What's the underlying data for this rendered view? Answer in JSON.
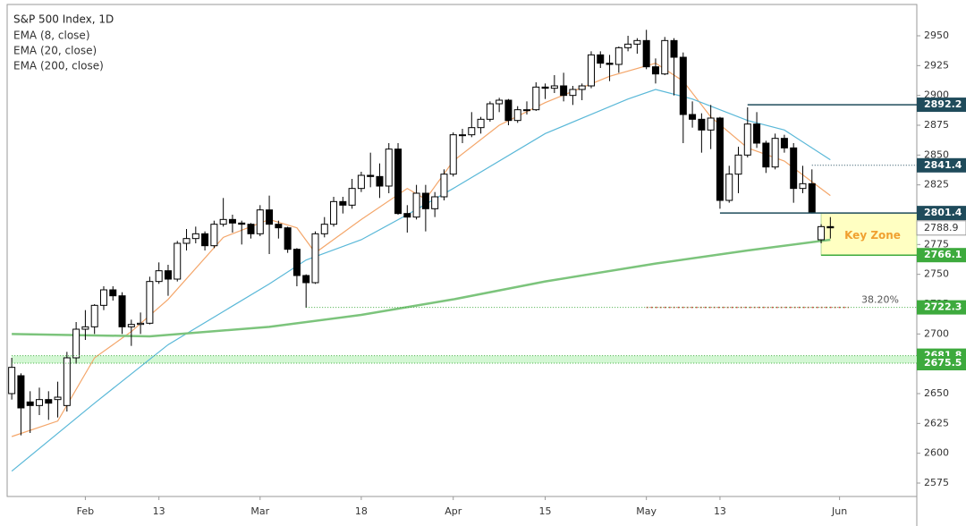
{
  "chart_data": {
    "type": "candlestick",
    "title": "S&P 500 Index, 1D",
    "x": [
      0,
      1,
      2,
      3,
      4,
      5,
      6,
      7,
      8,
      9,
      10,
      11,
      12,
      13,
      14,
      15,
      16,
      17,
      18,
      19,
      20,
      21,
      22,
      23,
      24,
      25,
      26,
      27,
      28,
      29,
      30,
      31,
      32,
      33,
      34,
      35,
      36,
      37,
      38,
      39,
      40,
      41,
      42,
      43,
      44,
      45,
      46,
      47,
      48,
      49,
      50,
      51,
      52,
      53,
      54,
      55,
      56,
      57,
      58,
      59,
      60,
      61,
      62,
      63,
      64,
      65,
      66,
      67,
      68,
      69,
      70,
      71,
      72,
      73,
      74,
      75,
      76,
      77,
      78,
      79,
      80,
      81,
      82,
      83,
      84,
      85,
      86,
      87,
      88,
      89
    ],
    "open": [
      2650,
      2665,
      2643,
      2640,
      2645,
      2645,
      2640,
      2680,
      2704,
      2706,
      2724,
      2737,
      2732,
      2706,
      2708,
      2709,
      2744,
      2753,
      2746,
      2776,
      2780,
      2784,
      2774,
      2792,
      2796,
      2793,
      2792,
      2784,
      2804,
      2792,
      2789,
      2771,
      2749,
      2743,
      2784,
      2792,
      2811,
      2808,
      2822,
      2833,
      2832,
      2824,
      2855,
      2801,
      2798,
      2818,
      2805,
      2815,
      2834,
      2867,
      2867,
      2873,
      2880,
      2893,
      2896,
      2879,
      2888,
      2888,
      2907,
      2906,
      2908,
      2900,
      2905,
      2908,
      2934,
      2927,
      2926,
      2940,
      2943,
      2946,
      2924,
      2918,
      2946,
      2932,
      2884,
      2880,
      2871,
      2881,
      2812,
      2834,
      2850,
      2876,
      2860,
      2840,
      2864,
      2856,
      2822,
      2826,
      2779,
      2790
    ],
    "high": [
      2680,
      2667,
      2652,
      2655,
      2652,
      2660,
      2685,
      2710,
      2720,
      2725,
      2740,
      2740,
      2735,
      2712,
      2718,
      2748,
      2760,
      2758,
      2778,
      2788,
      2790,
      2786,
      2795,
      2814,
      2800,
      2795,
      2793,
      2808,
      2816,
      2795,
      2790,
      2772,
      2750,
      2786,
      2798,
      2815,
      2815,
      2830,
      2836,
      2852,
      2843,
      2860,
      2860,
      2808,
      2825,
      2825,
      2819,
      2838,
      2869,
      2872,
      2886,
      2882,
      2895,
      2898,
      2897,
      2891,
      2895,
      2911,
      2910,
      2917,
      2919,
      2908,
      2910,
      2937,
      2937,
      2934,
      2941,
      2950,
      2948,
      2955,
      2931,
      2949,
      2948,
      2936,
      2895,
      2885,
      2892,
      2882,
      2841,
      2857,
      2890,
      2886,
      2862,
      2868,
      2867,
      2860,
      2841,
      2838,
      2792,
      2798
    ],
    "low": [
      2645,
      2615,
      2617,
      2632,
      2628,
      2630,
      2635,
      2675,
      2695,
      2700,
      2720,
      2728,
      2700,
      2690,
      2700,
      2708,
      2742,
      2732,
      2744,
      2770,
      2776,
      2770,
      2772,
      2790,
      2785,
      2775,
      2780,
      2782,
      2767,
      2780,
      2768,
      2740,
      2722,
      2742,
      2781,
      2790,
      2801,
      2805,
      2819,
      2823,
      2814,
      2818,
      2800,
      2785,
      2796,
      2786,
      2798,
      2812,
      2832,
      2860,
      2865,
      2868,
      2878,
      2886,
      2875,
      2877,
      2884,
      2887,
      2897,
      2902,
      2895,
      2892,
      2896,
      2906,
      2923,
      2912,
      2919,
      2937,
      2935,
      2922,
      2910,
      2917,
      2900,
      2860,
      2873,
      2852,
      2855,
      2805,
      2810,
      2818,
      2848,
      2856,
      2835,
      2838,
      2852,
      2810,
      2818,
      2801,
      2776,
      2780
    ],
    "close": [
      2672,
      2638,
      2640,
      2645,
      2642,
      2647,
      2680,
      2704,
      2706,
      2724,
      2737,
      2732,
      2706,
      2708,
      2709,
      2744,
      2753,
      2746,
      2776,
      2780,
      2784,
      2774,
      2792,
      2796,
      2793,
      2792,
      2784,
      2804,
      2792,
      2789,
      2771,
      2749,
      2743,
      2784,
      2792,
      2811,
      2808,
      2822,
      2833,
      2832,
      2824,
      2855,
      2801,
      2798,
      2818,
      2805,
      2815,
      2834,
      2867,
      2867,
      2873,
      2880,
      2893,
      2896,
      2879,
      2888,
      2888,
      2907,
      2906,
      2908,
      2900,
      2905,
      2908,
      2934,
      2927,
      2926,
      2940,
      2943,
      2946,
      2924,
      2918,
      2946,
      2932,
      2884,
      2880,
      2871,
      2881,
      2812,
      2834,
      2850,
      2876,
      2860,
      2840,
      2864,
      2856,
      2822,
      2826,
      2802,
      2790,
      2789
    ],
    "series": [
      {
        "name": "EMA (8, close)",
        "color": "#f4a66a",
        "x": [
          0,
          5,
          9,
          13,
          17,
          23,
          28,
          31,
          33,
          38,
          43,
          45,
          48,
          53,
          58,
          65,
          70,
          73,
          76,
          80,
          84,
          89
        ],
        "values": [
          2614,
          2627,
          2680,
          2702,
          2729,
          2781,
          2796,
          2789,
          2768,
          2796,
          2822,
          2813,
          2845,
          2875,
          2894,
          2916,
          2927,
          2912,
          2882,
          2856,
          2845,
          2816
        ]
      },
      {
        "name": "EMA (20, close)",
        "color": "#5ab8d8",
        "x": [
          0,
          9,
          17,
          28,
          32,
          38,
          43,
          48,
          58,
          67,
          70,
          74,
          80,
          84,
          89
        ],
        "values": [
          2585,
          2642,
          2691,
          2742,
          2762,
          2779,
          2800,
          2822,
          2868,
          2897,
          2905,
          2897,
          2879,
          2871,
          2846
        ]
      },
      {
        "name": "EMA (200, close)",
        "color": "#7cc47c",
        "x": [
          0,
          15,
          28,
          38,
          48,
          58,
          70,
          80,
          89
        ],
        "values": [
          2700,
          2698,
          2706,
          2716,
          2729,
          2744,
          2759,
          2770,
          2779
        ]
      }
    ],
    "levels": [
      {
        "value": 2892.2,
        "from": 80,
        "color": "#1f4b5b",
        "style": "solid"
      },
      {
        "value": 2841.4,
        "from": 87,
        "color": "#1f4b5b",
        "style": "dotted"
      },
      {
        "value": 2801.4,
        "from": 77,
        "color": "#1f4b5b",
        "style": "solid"
      },
      {
        "value": 2766.1,
        "from": 88,
        "color": "#3daa3d",
        "style": "solid"
      },
      {
        "value": 2722.3,
        "from": 32,
        "color": "#3daa3d",
        "style": "dotted"
      },
      {
        "value": 2681.8,
        "from": 0,
        "color": "#3daa3d",
        "style": "dotted"
      },
      {
        "value": 2675.5,
        "from": 0,
        "color": "#3daa3d",
        "style": "dotted"
      }
    ],
    "last_price": 2788.9,
    "key_zone": "Key Zone",
    "fib_label": "38.20%",
    "xlim": [
      -0.5,
      98.4
    ],
    "ylim": [
      2563.75,
      2976.25
    ],
    "yticks": [
      2575,
      2600,
      2625,
      2650,
      2675,
      2700,
      2725,
      2750,
      2775,
      2800,
      2825,
      2850,
      2875,
      2900,
      2925,
      2950
    ],
    "xticks": [
      {
        "value": 8,
        "label": "Feb"
      },
      {
        "value": 16,
        "label": "13"
      },
      {
        "value": 27,
        "label": "Mar"
      },
      {
        "value": 38,
        "label": "18"
      },
      {
        "value": 48,
        "label": "Apr"
      },
      {
        "value": 58,
        "label": "15"
      },
      {
        "value": 69,
        "label": "May"
      },
      {
        "value": 77,
        "label": "13"
      },
      {
        "value": 90,
        "label": "Jun"
      }
    ],
    "up_color": "#ffffff",
    "down_color": "#000000"
  }
}
